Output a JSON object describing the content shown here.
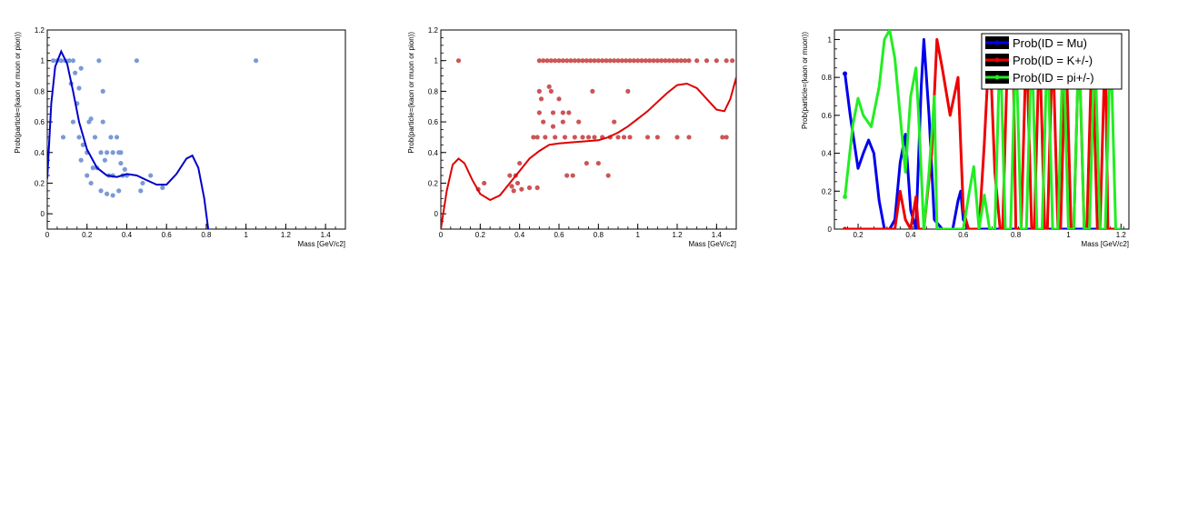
{
  "chart_data": [
    {
      "type": "scatter",
      "xlabel": "Mass [GeV/c2]",
      "ylabel": "Prob(particle=(kaon or muon or pion))",
      "xlim": [
        0,
        1.5
      ],
      "ylim": [
        -0.1,
        1.2
      ],
      "xticks": [
        0,
        0.2,
        0.4,
        0.6,
        0.8,
        1,
        1.2,
        1.4
      ],
      "xtick_labels": [
        "0",
        "0.2",
        "0.4",
        "0.6",
        "0.8",
        "1",
        "1.2",
        "1.4"
      ],
      "yticks": [
        0,
        0.2,
        0.4,
        0.6,
        0.8,
        1,
        1.2
      ],
      "ytick_labels": [
        "0",
        "0.2",
        "0.4",
        "0.6",
        "0.8",
        "1",
        "1.2"
      ],
      "grid": false,
      "marker_color": "#7a9ad6",
      "fit_color": "#0000cc",
      "points": [
        [
          0.0,
          0.46
        ],
        [
          0.03,
          1.0
        ],
        [
          0.05,
          1.0
        ],
        [
          0.07,
          1.0
        ],
        [
          0.09,
          1.0
        ],
        [
          0.11,
          1.0
        ],
        [
          0.13,
          1.0
        ],
        [
          0.08,
          0.5
        ],
        [
          0.12,
          0.85
        ],
        [
          0.14,
          0.92
        ],
        [
          0.16,
          0.82
        ],
        [
          0.17,
          0.95
        ],
        [
          0.15,
          0.72
        ],
        [
          0.13,
          0.6
        ],
        [
          0.16,
          0.5
        ],
        [
          0.18,
          0.45
        ],
        [
          0.17,
          0.35
        ],
        [
          0.2,
          0.4
        ],
        [
          0.21,
          0.6
        ],
        [
          0.22,
          0.62
        ],
        [
          0.24,
          0.5
        ],
        [
          0.23,
          0.3
        ],
        [
          0.2,
          0.25
        ],
        [
          0.22,
          0.2
        ],
        [
          0.25,
          0.3
        ],
        [
          0.26,
          1.0
        ],
        [
          0.27,
          0.4
        ],
        [
          0.28,
          0.8
        ],
        [
          0.28,
          0.6
        ],
        [
          0.29,
          0.35
        ],
        [
          0.3,
          0.4
        ],
        [
          0.31,
          0.25
        ],
        [
          0.32,
          0.5
        ],
        [
          0.33,
          0.4
        ],
        [
          0.35,
          0.5
        ],
        [
          0.36,
          0.4
        ],
        [
          0.37,
          0.33
        ],
        [
          0.38,
          0.25
        ],
        [
          0.39,
          0.29
        ],
        [
          0.4,
          0.25
        ],
        [
          0.27,
          0.15
        ],
        [
          0.3,
          0.13
        ],
        [
          0.33,
          0.12
        ],
        [
          0.36,
          0.15
        ],
        [
          0.33,
          0.25
        ],
        [
          0.37,
          0.4
        ],
        [
          0.45,
          1.0
        ],
        [
          0.47,
          0.15
        ],
        [
          0.48,
          0.2
        ],
        [
          0.52,
          0.25
        ],
        [
          0.58,
          0.17
        ],
        [
          1.05,
          1.0
        ]
      ],
      "fit": [
        [
          0.0,
          0.23
        ],
        [
          0.02,
          0.72
        ],
        [
          0.04,
          0.96
        ],
        [
          0.07,
          1.06
        ],
        [
          0.1,
          0.98
        ],
        [
          0.13,
          0.8
        ],
        [
          0.16,
          0.6
        ],
        [
          0.2,
          0.42
        ],
        [
          0.25,
          0.3
        ],
        [
          0.3,
          0.25
        ],
        [
          0.35,
          0.24
        ],
        [
          0.4,
          0.26
        ],
        [
          0.45,
          0.25
        ],
        [
          0.5,
          0.22
        ],
        [
          0.55,
          0.19
        ],
        [
          0.6,
          0.19
        ],
        [
          0.65,
          0.26
        ],
        [
          0.7,
          0.36
        ],
        [
          0.73,
          0.38
        ],
        [
          0.76,
          0.3
        ],
        [
          0.79,
          0.1
        ],
        [
          0.81,
          -0.1
        ]
      ]
    },
    {
      "type": "scatter",
      "xlabel": "Mass [GeV/c2]",
      "ylabel": "Prob(particle=(kaon or muon or pion))",
      "xlim": [
        0,
        1.5
      ],
      "ylim": [
        -0.1,
        1.2
      ],
      "xticks": [
        0,
        0.2,
        0.4,
        0.6,
        0.8,
        1,
        1.2,
        1.4
      ],
      "xtick_labels": [
        "0",
        "0.2",
        "0.4",
        "0.6",
        "0.8",
        "1",
        "1.2",
        "1.4"
      ],
      "yticks": [
        0,
        0.2,
        0.4,
        0.6,
        0.8,
        1,
        1.2
      ],
      "ytick_labels": [
        "0",
        "0.2",
        "0.4",
        "0.6",
        "0.8",
        "1",
        "1.2"
      ],
      "grid": false,
      "marker_color": "#cc5555",
      "fit_color": "#dd0000",
      "points": [
        [
          0.09,
          1.0
        ],
        [
          0.19,
          0.16
        ],
        [
          0.22,
          0.2
        ],
        [
          0.35,
          0.25
        ],
        [
          0.36,
          0.18
        ],
        [
          0.37,
          0.15
        ],
        [
          0.38,
          0.25
        ],
        [
          0.39,
          0.2
        ],
        [
          0.4,
          0.33
        ],
        [
          0.41,
          0.16
        ],
        [
          0.45,
          0.17
        ],
        [
          0.49,
          0.17
        ],
        [
          0.47,
          0.5
        ],
        [
          0.49,
          0.5
        ],
        [
          0.5,
          0.8
        ],
        [
          0.5,
          0.66
        ],
        [
          0.51,
          0.75
        ],
        [
          0.52,
          0.6
        ],
        [
          0.53,
          0.5
        ],
        [
          0.55,
          0.83
        ],
        [
          0.56,
          0.8
        ],
        [
          0.57,
          0.66
        ],
        [
          0.57,
          0.57
        ],
        [
          0.58,
          0.5
        ],
        [
          0.6,
          0.75
        ],
        [
          0.62,
          0.6
        ],
        [
          0.62,
          0.66
        ],
        [
          0.63,
          0.5
        ],
        [
          0.64,
          0.25
        ],
        [
          0.65,
          0.66
        ],
        [
          0.67,
          0.25
        ],
        [
          0.68,
          0.5
        ],
        [
          0.7,
          0.6
        ],
        [
          0.72,
          0.5
        ],
        [
          0.74,
          0.33
        ],
        [
          0.75,
          0.5
        ],
        [
          0.77,
          0.8
        ],
        [
          0.78,
          0.5
        ],
        [
          0.8,
          0.33
        ],
        [
          0.82,
          0.5
        ],
        [
          0.85,
          0.25
        ],
        [
          0.86,
          0.5
        ],
        [
          0.88,
          0.6
        ],
        [
          0.9,
          0.5
        ],
        [
          0.93,
          0.5
        ],
        [
          0.95,
          0.8
        ],
        [
          0.96,
          0.5
        ],
        [
          1.05,
          0.5
        ],
        [
          1.1,
          0.5
        ],
        [
          1.2,
          0.5
        ],
        [
          1.26,
          0.5
        ],
        [
          1.43,
          0.5
        ],
        [
          1.45,
          0.5
        ],
        [
          0.5,
          1.0
        ],
        [
          0.52,
          1.0
        ],
        [
          0.54,
          1.0
        ],
        [
          0.56,
          1.0
        ],
        [
          0.58,
          1.0
        ],
        [
          0.6,
          1.0
        ],
        [
          0.62,
          1.0
        ],
        [
          0.64,
          1.0
        ],
        [
          0.66,
          1.0
        ],
        [
          0.68,
          1.0
        ],
        [
          0.7,
          1.0
        ],
        [
          0.72,
          1.0
        ],
        [
          0.74,
          1.0
        ],
        [
          0.76,
          1.0
        ],
        [
          0.78,
          1.0
        ],
        [
          0.8,
          1.0
        ],
        [
          0.82,
          1.0
        ],
        [
          0.84,
          1.0
        ],
        [
          0.86,
          1.0
        ],
        [
          0.88,
          1.0
        ],
        [
          0.9,
          1.0
        ],
        [
          0.92,
          1.0
        ],
        [
          0.94,
          1.0
        ],
        [
          0.96,
          1.0
        ],
        [
          0.98,
          1.0
        ],
        [
          1.0,
          1.0
        ],
        [
          1.02,
          1.0
        ],
        [
          1.04,
          1.0
        ],
        [
          1.06,
          1.0
        ],
        [
          1.08,
          1.0
        ],
        [
          1.1,
          1.0
        ],
        [
          1.12,
          1.0
        ],
        [
          1.14,
          1.0
        ],
        [
          1.16,
          1.0
        ],
        [
          1.18,
          1.0
        ],
        [
          1.2,
          1.0
        ],
        [
          1.22,
          1.0
        ],
        [
          1.24,
          1.0
        ],
        [
          1.26,
          1.0
        ],
        [
          1.3,
          1.0
        ],
        [
          1.35,
          1.0
        ],
        [
          1.4,
          1.0
        ],
        [
          1.45,
          1.0
        ],
        [
          1.48,
          1.0
        ]
      ],
      "fit": [
        [
          0.0,
          -0.1
        ],
        [
          0.03,
          0.15
        ],
        [
          0.06,
          0.32
        ],
        [
          0.09,
          0.36
        ],
        [
          0.12,
          0.33
        ],
        [
          0.16,
          0.22
        ],
        [
          0.2,
          0.13
        ],
        [
          0.25,
          0.09
        ],
        [
          0.3,
          0.12
        ],
        [
          0.35,
          0.2
        ],
        [
          0.4,
          0.28
        ],
        [
          0.45,
          0.36
        ],
        [
          0.5,
          0.41
        ],
        [
          0.55,
          0.45
        ],
        [
          0.6,
          0.46
        ],
        [
          0.7,
          0.47
        ],
        [
          0.8,
          0.48
        ],
        [
          0.85,
          0.5
        ],
        [
          0.9,
          0.53
        ],
        [
          0.95,
          0.57
        ],
        [
          1.0,
          0.62
        ],
        [
          1.05,
          0.67
        ],
        [
          1.1,
          0.73
        ],
        [
          1.15,
          0.79
        ],
        [
          1.2,
          0.84
        ],
        [
          1.25,
          0.85
        ],
        [
          1.3,
          0.82
        ],
        [
          1.35,
          0.75
        ],
        [
          1.4,
          0.68
        ],
        [
          1.44,
          0.67
        ],
        [
          1.47,
          0.75
        ],
        [
          1.5,
          0.89
        ]
      ]
    },
    {
      "type": "line",
      "xlabel": "Mass [GeV/c2]",
      "ylabel": "Prob(particle=(kaon or muon))",
      "xlim": [
        0.11,
        1.23
      ],
      "ylim": [
        0,
        1.05
      ],
      "xticks": [
        0.2,
        0.4,
        0.6,
        0.8,
        1,
        1.2
      ],
      "xtick_labels": [
        "0.2",
        "0.4",
        "0.6",
        "0.8",
        "1",
        "1.2"
      ],
      "yticks": [
        0,
        0.2,
        0.4,
        0.6,
        0.8,
        1
      ],
      "ytick_labels": [
        "0",
        "0.2",
        "0.4",
        "0.6",
        "0.8",
        "1"
      ],
      "grid": false,
      "legend_position": "top-right",
      "series": [
        {
          "name": "Prob(ID = Mu)",
          "color": "#0000ee",
          "x": [
            0.15,
            0.17,
            0.2,
            0.22,
            0.24,
            0.26,
            0.28,
            0.3,
            0.32,
            0.34,
            0.36,
            0.38,
            0.4,
            0.42,
            0.44,
            0.45,
            0.47,
            0.49,
            0.52,
            0.56,
            0.58,
            0.59,
            0.6,
            0.62,
            0.7,
            0.8,
            0.9,
            1.0,
            1.1,
            1.2
          ],
          "y": [
            0.82,
            0.6,
            0.32,
            0.4,
            0.47,
            0.4,
            0.15,
            0.0,
            0.0,
            0.05,
            0.35,
            0.5,
            0.1,
            0.0,
            0.75,
            1.0,
            0.6,
            0.05,
            0.0,
            0.0,
            0.15,
            0.2,
            0.05,
            0.0,
            0.0,
            0.0,
            0.0,
            0.0,
            0.0,
            0.0
          ]
        },
        {
          "name": "Prob(ID = K+/-)",
          "color": "#ee0000",
          "x": [
            0.15,
            0.2,
            0.28,
            0.34,
            0.36,
            0.38,
            0.4,
            0.42,
            0.43,
            0.45,
            0.48,
            0.5,
            0.52,
            0.55,
            0.58,
            0.6,
            0.62,
            0.66,
            0.68,
            0.7,
            0.72,
            0.74,
            0.75,
            0.77,
            0.79,
            0.8,
            0.82,
            0.84,
            0.86,
            0.87,
            0.89,
            0.91,
            0.92,
            0.94,
            0.96,
            0.97,
            0.99,
            1.01,
            1.02,
            1.04,
            1.06,
            1.07,
            1.09,
            1.11,
            1.12,
            1.14,
            1.15,
            1.2
          ],
          "y": [
            0.0,
            0.0,
            0.0,
            0.0,
            0.2,
            0.05,
            0.0,
            0.17,
            0.0,
            0.0,
            0.4,
            1.0,
            0.85,
            0.6,
            0.8,
            0.1,
            0.0,
            0.0,
            0.45,
            1.0,
            0.3,
            0.0,
            0.0,
            1.0,
            0.9,
            0.0,
            0.0,
            1.0,
            0.0,
            0.0,
            1.0,
            0.0,
            0.0,
            1.0,
            0.0,
            0.0,
            1.0,
            0.0,
            0.0,
            1.0,
            0.0,
            0.0,
            1.0,
            0.0,
            0.0,
            1.0,
            0.0,
            0.0
          ]
        },
        {
          "name": "Prob(ID = pi+/-)",
          "color": "#22ee22",
          "x": [
            0.15,
            0.18,
            0.2,
            0.22,
            0.25,
            0.28,
            0.3,
            0.32,
            0.34,
            0.36,
            0.38,
            0.4,
            0.42,
            0.43,
            0.45,
            0.47,
            0.49,
            0.5,
            0.52,
            0.55,
            0.58,
            0.6,
            0.62,
            0.64,
            0.66,
            0.68,
            0.7,
            0.72,
            0.74,
            0.76,
            0.78,
            0.8,
            0.82,
            0.84,
            0.86,
            0.88,
            0.9,
            0.92,
            0.94,
            0.96,
            0.98,
            1.0,
            1.02,
            1.04,
            1.06,
            1.08,
            1.1,
            1.12,
            1.14,
            1.16,
            1.18,
            1.2
          ],
          "y": [
            0.17,
            0.55,
            0.69,
            0.6,
            0.54,
            0.75,
            1.0,
            1.05,
            0.9,
            0.6,
            0.3,
            0.7,
            0.85,
            0.6,
            0.0,
            0.3,
            0.7,
            0.0,
            0.0,
            0.0,
            0.0,
            0.0,
            0.17,
            0.33,
            0.0,
            0.18,
            0.0,
            0.0,
            1.0,
            0.0,
            0.0,
            1.0,
            0.0,
            0.0,
            1.0,
            0.0,
            0.0,
            1.0,
            0.0,
            0.0,
            1.0,
            0.0,
            0.0,
            1.0,
            0.0,
            0.0,
            1.0,
            0.0,
            0.0,
            1.0,
            0.0,
            0.0
          ]
        }
      ]
    }
  ]
}
